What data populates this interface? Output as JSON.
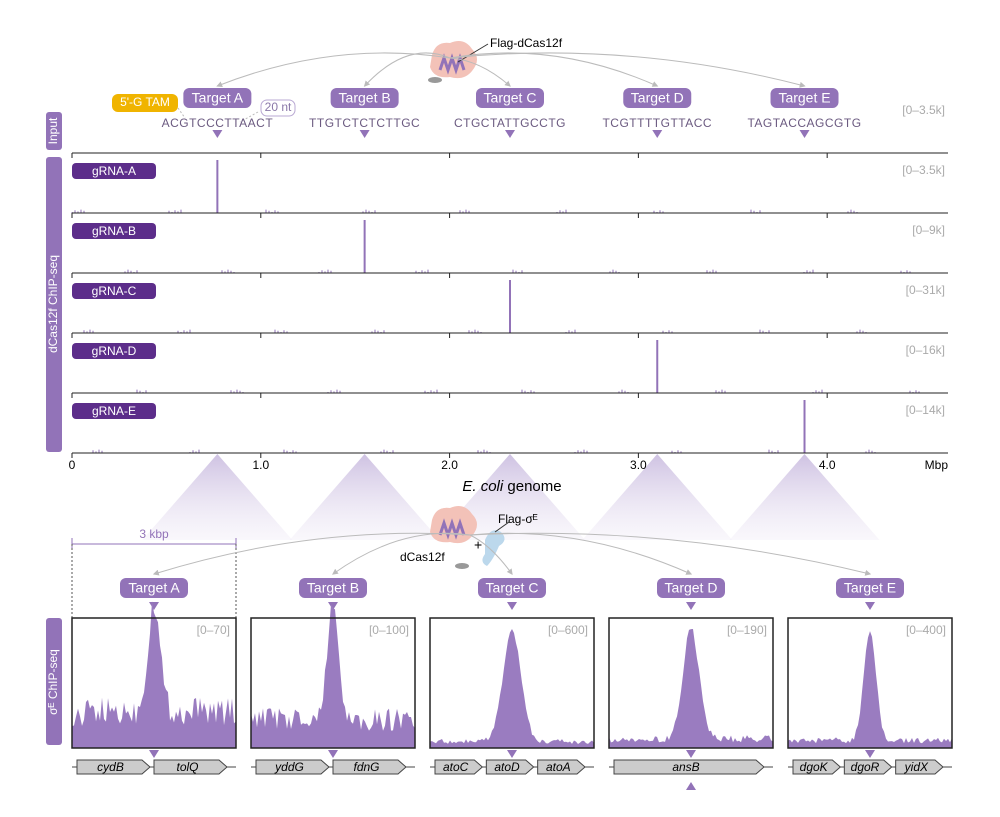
{
  "top": {
    "complex_label": "Flag-dCas12f",
    "tam_label": "5'-G TAM",
    "nt_label": "20 nt",
    "input_label": "Input",
    "input_range": "[0–3.5k]",
    "targets": [
      "Target A",
      "Target B",
      "Target C",
      "Target D",
      "Target E"
    ],
    "sequences": [
      "ACGTCCCTTAACT",
      "TTGTCTCTCTTGC",
      "CTGCTATTGCCTG",
      "TCGTTTTGTTACC",
      "TAGTACCAGCGTG"
    ]
  },
  "chart_data": {
    "type": "track",
    "ylabel": "dCas12f ChIP-seq",
    "xlabel_species": "E. coli",
    "xlabel_rest": "genome",
    "x_unit": "Mbp",
    "xlim": [
      0,
      4.64
    ],
    "xticks": [
      0,
      {
        "value": 1,
        "label": "1.0"
      },
      {
        "value": 2,
        "label": "2.0"
      },
      {
        "value": 3,
        "label": "3.0"
      },
      {
        "value": 4,
        "label": "4.0"
      }
    ],
    "color": "#9273b8",
    "series": [
      {
        "name": "gRNA-A",
        "range_label": "[0–3.5k]",
        "peak_x": 0.77
      },
      {
        "name": "gRNA-B",
        "range_label": "[0–9k]",
        "peak_x": 1.55
      },
      {
        "name": "gRNA-C",
        "range_label": "[0–31k]",
        "peak_x": 2.32
      },
      {
        "name": "gRNA-D",
        "range_label": "[0–16k]",
        "peak_x": 3.1
      },
      {
        "name": "gRNA-E",
        "range_label": "[0–14k]",
        "peak_x": 3.88
      }
    ]
  },
  "bottom": {
    "ylabel": "σᴱ ChIP-seq",
    "complex_label": "dCas12f",
    "plus": "+",
    "factor_label": "Flag-σᴱ",
    "scale_label": "3 kbp",
    "panels": [
      {
        "target": "Target A",
        "range_label": "[0–70]",
        "genes": [
          "cydB",
          "tolQ"
        ]
      },
      {
        "target": "Target B",
        "range_label": "[0–100]",
        "genes": [
          "yddG",
          "fdnG"
        ]
      },
      {
        "target": "Target C",
        "range_label": "[0–600]",
        "genes": [
          "atoC",
          "atoD",
          "atoA"
        ]
      },
      {
        "target": "Target D",
        "range_label": "[0–190]",
        "genes": [
          "ansB"
        ]
      },
      {
        "target": "Target E",
        "range_label": "[0–400]",
        "genes": [
          "dgoK",
          "dgoR",
          "yidX"
        ]
      }
    ]
  }
}
